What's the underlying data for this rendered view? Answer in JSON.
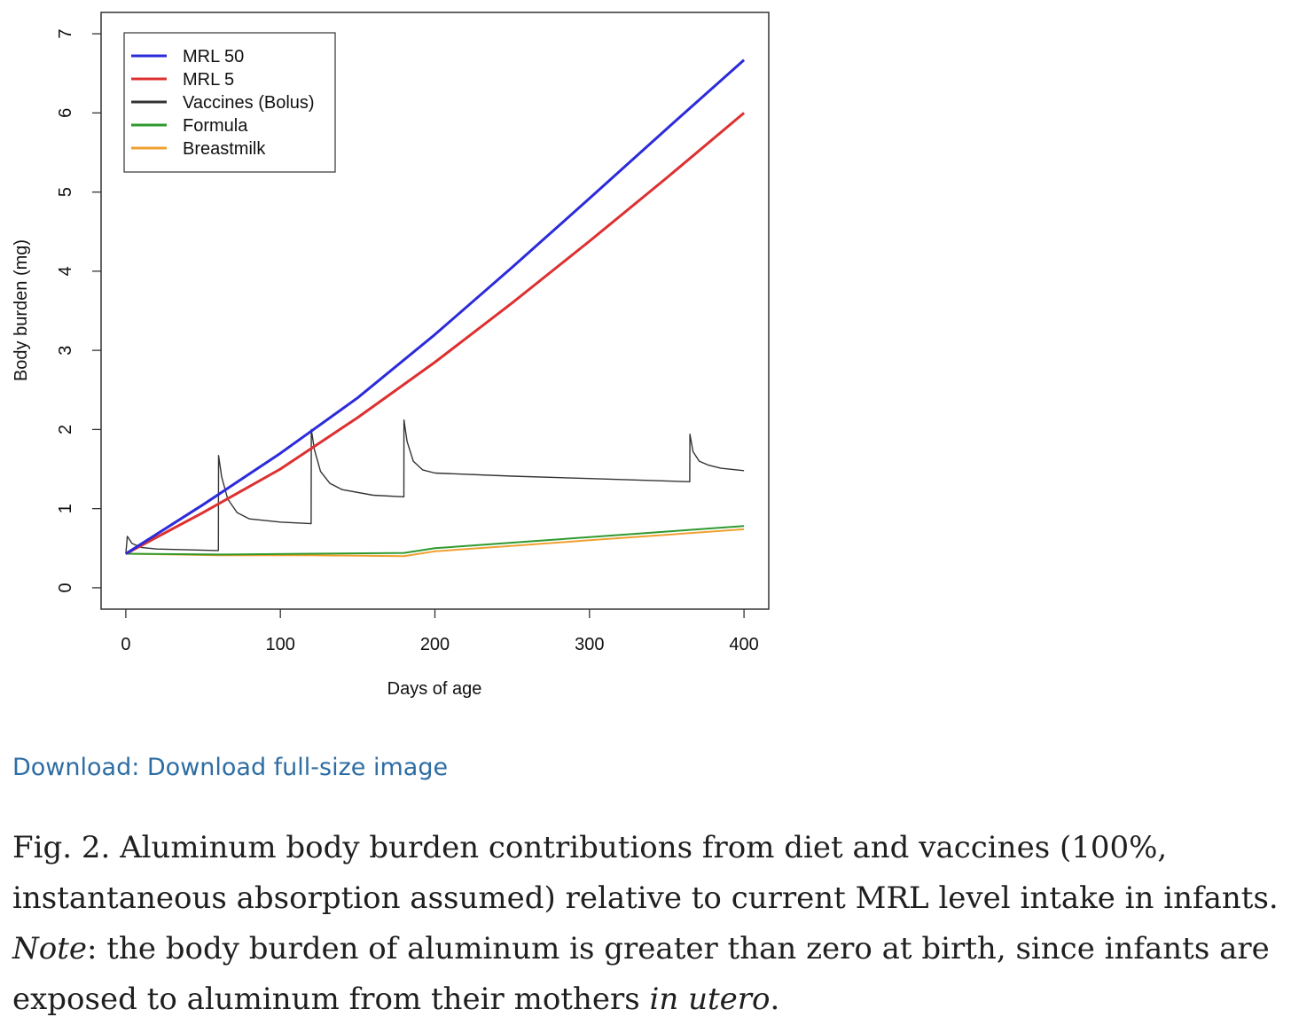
{
  "chart_data": {
    "type": "line",
    "xlabel": "Days of age",
    "ylabel": "Body burden (mg)",
    "xlim": [
      -16,
      416
    ],
    "ylim": [
      -0.27,
      7.27
    ],
    "x_ticks": [
      0,
      100,
      200,
      300,
      400
    ],
    "y_ticks": [
      0,
      1,
      2,
      3,
      4,
      5,
      6,
      7
    ],
    "legend_position": "top-left",
    "grid": false,
    "series": [
      {
        "name": "MRL 50",
        "color": "#2b2bdb",
        "x": [
          0,
          50,
          100,
          120,
          150,
          200,
          250,
          300,
          350,
          400
        ],
        "y": [
          0.43,
          1.05,
          1.7,
          1.98,
          2.4,
          3.2,
          4.05,
          4.92,
          5.8,
          6.67
        ]
      },
      {
        "name": "MRL 5",
        "color": "#dd3030",
        "x": [
          0,
          50,
          100,
          150,
          200,
          250,
          300,
          350,
          400
        ],
        "y": [
          0.43,
          0.95,
          1.5,
          2.15,
          2.85,
          3.6,
          4.38,
          5.18,
          6.0
        ]
      },
      {
        "name": "Vaccines (Bolus)",
        "color": "#333333",
        "x": [
          0,
          1,
          4,
          10,
          20,
          40,
          59.9,
          60,
          62,
          66,
          72,
          80,
          100,
          119.9,
          120,
          122,
          126,
          132,
          140,
          160,
          179.9,
          180,
          182,
          186,
          192,
          200,
          250,
          300,
          364.9,
          365,
          367,
          371,
          377,
          385,
          400
        ],
        "y": [
          0.43,
          0.65,
          0.56,
          0.51,
          0.49,
          0.48,
          0.47,
          1.67,
          1.4,
          1.12,
          0.95,
          0.87,
          0.83,
          0.81,
          2.0,
          1.75,
          1.47,
          1.32,
          1.24,
          1.17,
          1.15,
          2.12,
          1.85,
          1.6,
          1.49,
          1.45,
          1.41,
          1.38,
          1.34,
          1.94,
          1.72,
          1.6,
          1.55,
          1.51,
          1.48
        ]
      },
      {
        "name": "Formula",
        "color": "#2e9a2e",
        "x": [
          0,
          60,
          120,
          180,
          200,
          250,
          300,
          350,
          400
        ],
        "y": [
          0.43,
          0.42,
          0.43,
          0.44,
          0.5,
          0.57,
          0.64,
          0.71,
          0.78
        ]
      },
      {
        "name": "Breastmilk",
        "color": "#f0a030",
        "x": [
          0,
          60,
          120,
          180,
          200,
          250,
          300,
          350,
          400
        ],
        "y": [
          0.43,
          0.41,
          0.41,
          0.4,
          0.46,
          0.53,
          0.6,
          0.67,
          0.74
        ]
      }
    ]
  },
  "download": {
    "label": "Download: Download full-size image"
  },
  "caption": {
    "part1": "Fig. 2. Aluminum body burden contributions from diet and vaccines (100%, instantaneous absorption assumed) relative to current MRL level intake in infants. ",
    "note_label": "Note",
    "part2": ": the body burden of aluminum is greater than zero at birth, since infants are exposed to aluminum from their mothers ",
    "in_utero": "in utero",
    "part3": "."
  }
}
